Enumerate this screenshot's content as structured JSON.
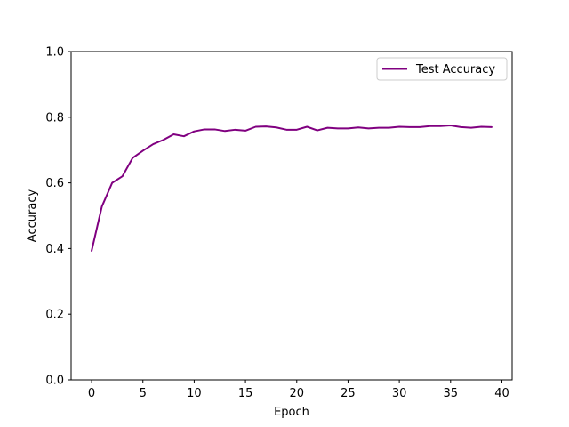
{
  "chart_data": {
    "type": "line",
    "title": "",
    "xlabel": "Epoch",
    "ylabel": "Accuracy",
    "xlim": [
      -2,
      41
    ],
    "ylim": [
      0,
      1.0
    ],
    "xticks": [
      0,
      5,
      10,
      15,
      20,
      25,
      30,
      35,
      40
    ],
    "yticks": [
      0.0,
      0.2,
      0.4,
      0.6,
      0.8,
      1.0
    ],
    "xtick_labels": [
      "0",
      "5",
      "10",
      "15",
      "20",
      "25",
      "30",
      "35",
      "40"
    ],
    "ytick_labels": [
      "0.0",
      "0.2",
      "0.4",
      "0.6",
      "0.8",
      "1.0"
    ],
    "grid": false,
    "legend_position": "top-right",
    "series": [
      {
        "name": "Test Accuracy",
        "color": "#800080",
        "x": [
          0,
          1,
          2,
          3,
          4,
          5,
          6,
          7,
          8,
          9,
          10,
          11,
          12,
          13,
          14,
          15,
          16,
          17,
          18,
          19,
          20,
          21,
          22,
          23,
          24,
          25,
          26,
          27,
          28,
          29,
          30,
          31,
          32,
          33,
          34,
          35,
          36,
          37,
          38,
          39
        ],
        "y": [
          0.393,
          0.528,
          0.6,
          0.62,
          0.676,
          0.698,
          0.718,
          0.731,
          0.748,
          0.742,
          0.757,
          0.763,
          0.763,
          0.758,
          0.762,
          0.759,
          0.771,
          0.772,
          0.769,
          0.762,
          0.762,
          0.771,
          0.76,
          0.768,
          0.766,
          0.766,
          0.769,
          0.766,
          0.768,
          0.768,
          0.771,
          0.77,
          0.77,
          0.773,
          0.773,
          0.775,
          0.77,
          0.768,
          0.771,
          0.77
        ]
      }
    ]
  }
}
